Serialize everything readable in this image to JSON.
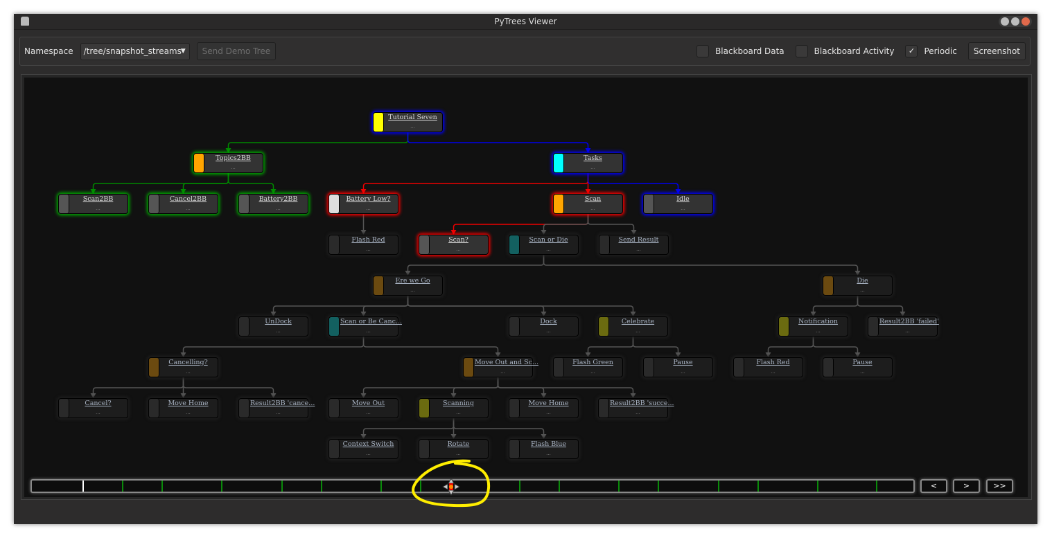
{
  "window": {
    "title": "PyTrees Viewer"
  },
  "toolbar": {
    "namespace_label": "Namespace",
    "namespace_value": "/tree/snapshot_streams",
    "send_demo_tree": "Send Demo Tree",
    "blackboard_data": {
      "label": "Blackboard Data",
      "checked": false
    },
    "blackboard_activity": {
      "label": "Blackboard Activity",
      "checked": false
    },
    "periodic": {
      "label": "Periodic",
      "checked": true,
      "mark": "✓"
    },
    "screenshot": "Screenshot"
  },
  "colors": {
    "active_green": "#008800",
    "active_blue": "#0000ee",
    "active_red": "#ee0000",
    "inactive": "#555555",
    "annotation": "#ffee00"
  },
  "tree": {
    "nodes": [
      {
        "id": 0,
        "label": "Tutorial Seven",
        "detail": "...",
        "parent": null,
        "bar": "#ffff00",
        "glow": "#0000ff",
        "edge": null
      },
      {
        "id": 1,
        "label": "Topics2BB",
        "detail": "...",
        "parent": 0,
        "bar": "#ffa500",
        "glow": "#00aa00",
        "edge": "#008800"
      },
      {
        "id": 2,
        "label": "Tasks",
        "detail": "...",
        "parent": 0,
        "bar": "#00ffff",
        "glow": "#0000ff",
        "edge": "#0000ee"
      },
      {
        "id": 3,
        "label": "Scan2BB",
        "detail": "...",
        "parent": 1,
        "bar": "#555555",
        "glow": "#00aa00",
        "edge": "#008800"
      },
      {
        "id": 4,
        "label": "Cancel2BB",
        "detail": "...",
        "parent": 1,
        "bar": "#555555",
        "glow": "#00aa00",
        "edge": "#008800"
      },
      {
        "id": 5,
        "label": "Battery2BB",
        "detail": "...",
        "parent": 1,
        "bar": "#555555",
        "glow": "#00aa00",
        "edge": "#008800"
      },
      {
        "id": 6,
        "label": "Battery Low?",
        "detail": "...",
        "parent": 2,
        "bar": "#dddddd",
        "glow": "#ff0000",
        "edge": "#ee0000"
      },
      {
        "id": 7,
        "label": "Scan",
        "detail": "...",
        "parent": 2,
        "bar": "#ffa500",
        "glow": "#ff0000",
        "edge": "#ee0000"
      },
      {
        "id": 8,
        "label": "Idle",
        "detail": "...",
        "parent": 2,
        "bar": "#555555",
        "glow": "#0000ff",
        "edge": "#0000ee"
      },
      {
        "id": 9,
        "label": "Flash Red",
        "detail": "...",
        "parent": 6,
        "bar": "#2a2a2a",
        "glow": null,
        "edge": "#555555"
      },
      {
        "id": 10,
        "label": "Scan?",
        "detail": "...",
        "parent": 7,
        "bar": "#555555",
        "glow": "#ff0000",
        "edge": "#ee0000"
      },
      {
        "id": 11,
        "label": "Scan or Die",
        "detail": "...",
        "parent": 7,
        "bar": "#136060",
        "glow": null,
        "edge": "#555555"
      },
      {
        "id": 12,
        "label": "Send Result",
        "detail": "...",
        "parent": 7,
        "bar": "#2a2a2a",
        "glow": null,
        "edge": "#555555"
      },
      {
        "id": 13,
        "label": "Ere we Go",
        "detail": "...",
        "parent": 11,
        "bar": "#6b4a10",
        "glow": null,
        "edge": "#555555"
      },
      {
        "id": 14,
        "label": "Die",
        "detail": "...",
        "parent": 11,
        "bar": "#6b4a10",
        "glow": null,
        "edge": "#555555"
      },
      {
        "id": 15,
        "label": "UnDock",
        "detail": "...",
        "parent": 13,
        "bar": "#2a2a2a",
        "glow": null,
        "edge": "#555555"
      },
      {
        "id": 16,
        "label": "Scan or Be Canc...",
        "detail": "...",
        "parent": 13,
        "bar": "#136060",
        "glow": null,
        "edge": "#555555"
      },
      {
        "id": 17,
        "label": "Dock",
        "detail": "...",
        "parent": 13,
        "bar": "#2a2a2a",
        "glow": null,
        "edge": "#555555"
      },
      {
        "id": 18,
        "label": "Celebrate",
        "detail": "...",
        "parent": 13,
        "bar": "#6b6b10",
        "glow": null,
        "edge": "#555555"
      },
      {
        "id": 19,
        "label": "Notification",
        "detail": "...",
        "parent": 14,
        "bar": "#6b6b10",
        "glow": null,
        "edge": "#555555"
      },
      {
        "id": 20,
        "label": "Result2BB 'failed'",
        "detail": "...",
        "parent": 14,
        "bar": "#2a2a2a",
        "glow": null,
        "edge": "#555555"
      },
      {
        "id": 21,
        "label": "Cancelling?",
        "detail": "...",
        "parent": 16,
        "bar": "#6b4a10",
        "glow": null,
        "edge": "#555555"
      },
      {
        "id": 22,
        "label": "Move Out and Sc...",
        "detail": "...",
        "parent": 16,
        "bar": "#6b4a10",
        "glow": null,
        "edge": "#555555"
      },
      {
        "id": 23,
        "label": "Flash Green",
        "detail": "...",
        "parent": 18,
        "bar": "#2a2a2a",
        "glow": null,
        "edge": "#555555"
      },
      {
        "id": 24,
        "label": "Pause",
        "detail": "...",
        "parent": 18,
        "bar": "#2a2a2a",
        "glow": null,
        "edge": "#555555"
      },
      {
        "id": 25,
        "label": "Flash Red",
        "detail": "...",
        "parent": 19,
        "bar": "#2a2a2a",
        "glow": null,
        "edge": "#555555"
      },
      {
        "id": 26,
        "label": "Pause",
        "detail": "...",
        "parent": 19,
        "bar": "#2a2a2a",
        "glow": null,
        "edge": "#555555"
      },
      {
        "id": 27,
        "label": "Cancel?",
        "detail": "...",
        "parent": 21,
        "bar": "#2a2a2a",
        "glow": null,
        "edge": "#555555"
      },
      {
        "id": 28,
        "label": "Move Home",
        "detail": "...",
        "parent": 21,
        "bar": "#2a2a2a",
        "glow": null,
        "edge": "#555555"
      },
      {
        "id": 29,
        "label": "Result2BB 'cance...",
        "detail": "...",
        "parent": 21,
        "bar": "#2a2a2a",
        "glow": null,
        "edge": "#555555"
      },
      {
        "id": 30,
        "label": "Move Out",
        "detail": "...",
        "parent": 22,
        "bar": "#2a2a2a",
        "glow": null,
        "edge": "#555555"
      },
      {
        "id": 31,
        "label": "Scanning",
        "detail": "...",
        "parent": 22,
        "bar": "#6b6b10",
        "glow": null,
        "edge": "#555555"
      },
      {
        "id": 32,
        "label": "Move Home",
        "detail": "...",
        "parent": 22,
        "bar": "#2a2a2a",
        "glow": null,
        "edge": "#555555"
      },
      {
        "id": 33,
        "label": "Result2BB 'succe...",
        "detail": "...",
        "parent": 22,
        "bar": "#2a2a2a",
        "glow": null,
        "edge": "#555555"
      },
      {
        "id": 34,
        "label": "Context Switch",
        "detail": "...",
        "parent": 31,
        "bar": "#2a2a2a",
        "glow": null,
        "edge": "#555555"
      },
      {
        "id": 35,
        "label": "Rotate",
        "detail": "...",
        "parent": 31,
        "bar": "#2a2a2a",
        "glow": null,
        "edge": "#555555"
      },
      {
        "id": 36,
        "label": "Flash Blue",
        "detail": "...",
        "parent": 31,
        "bar": "#2a2a2a",
        "glow": null,
        "edge": "#555555"
      }
    ]
  },
  "timeline": {
    "prev": "<",
    "next": ">",
    "last": ">>"
  }
}
